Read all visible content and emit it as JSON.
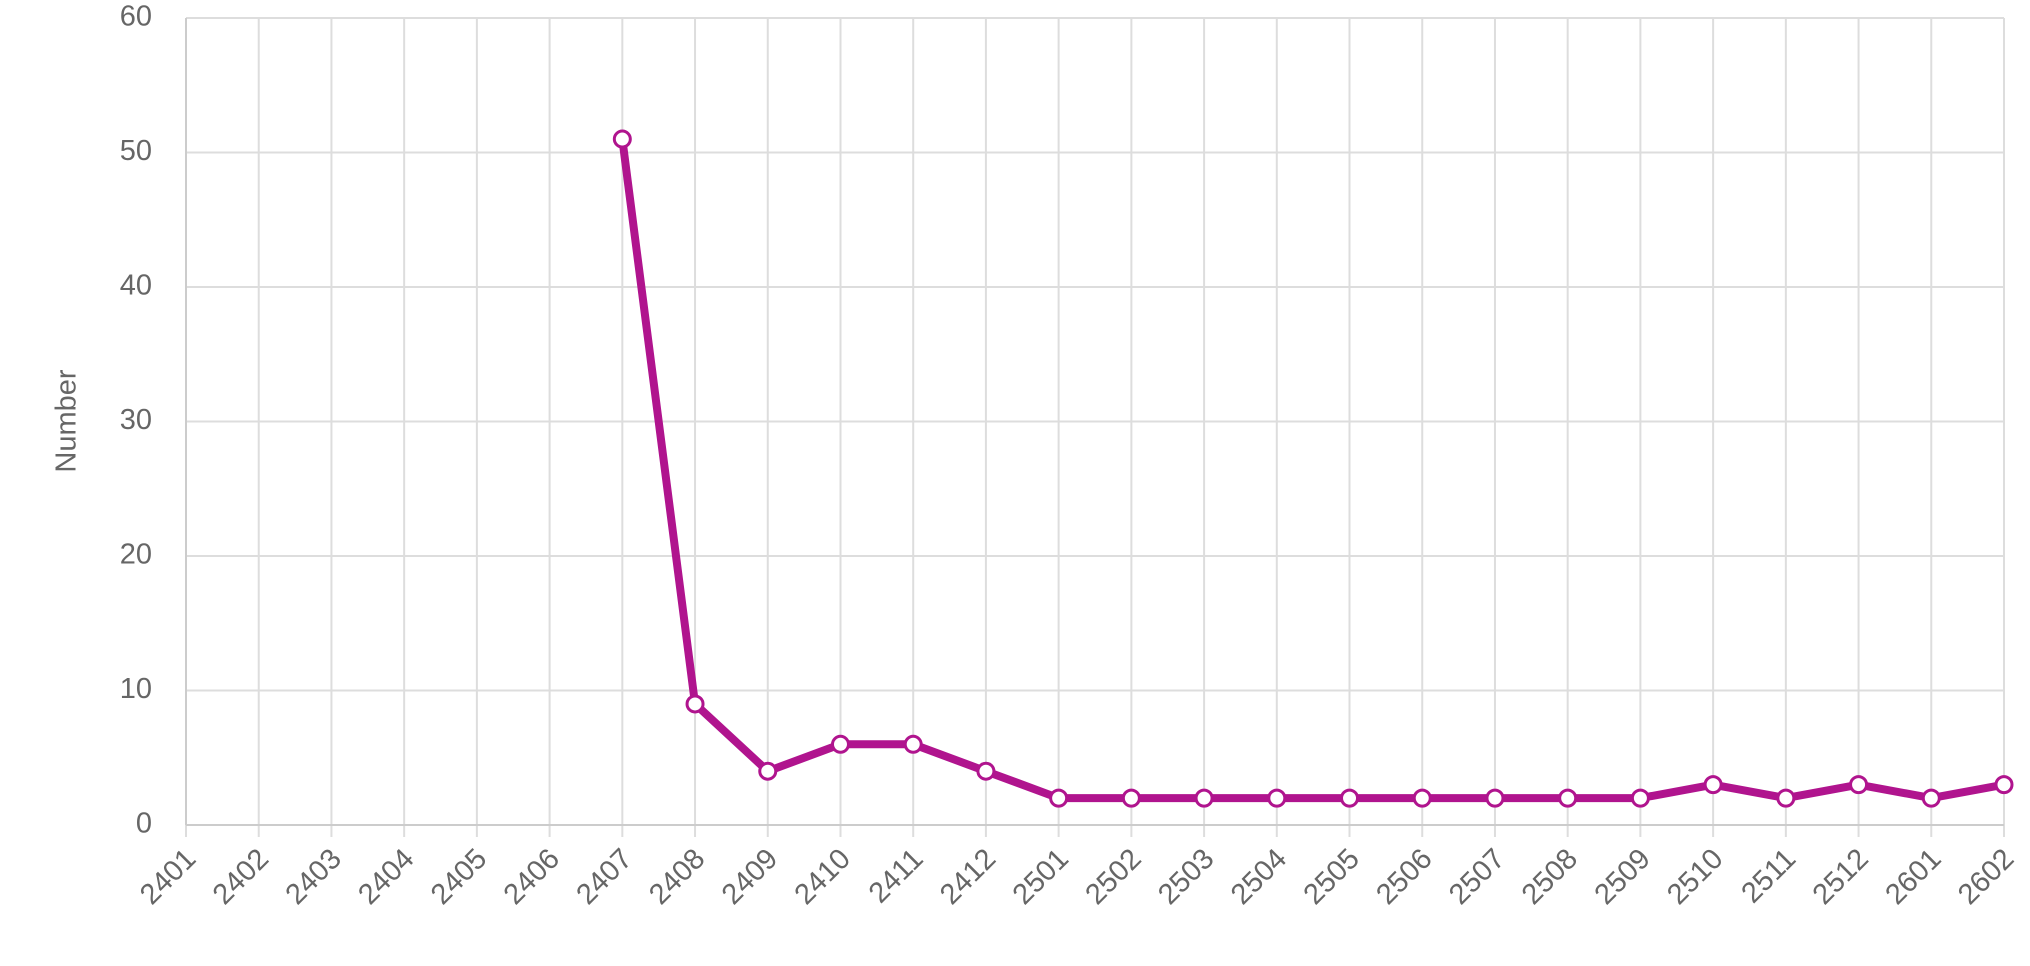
{
  "chart_data": {
    "type": "line",
    "y_label": "Number",
    "categories": [
      "2401",
      "2402",
      "2403",
      "2404",
      "2405",
      "2406",
      "2407",
      "2408",
      "2409",
      "2410",
      "2411",
      "2412",
      "2501",
      "2502",
      "2503",
      "2504",
      "2505",
      "2506",
      "2507",
      "2508",
      "2509",
      "2510",
      "2511",
      "2512",
      "2601",
      "2602"
    ],
    "values": [
      null,
      null,
      null,
      null,
      null,
      null,
      51,
      9,
      4,
      6,
      6,
      4,
      2,
      2,
      2,
      2,
      2,
      2,
      2,
      2,
      2,
      3,
      2,
      3,
      2,
      3
    ],
    "color": "#b0148e",
    "ylim": [
      0,
      60
    ],
    "yticks": [
      0,
      10,
      20,
      30,
      40,
      50,
      60
    ],
    "grid": true
  }
}
